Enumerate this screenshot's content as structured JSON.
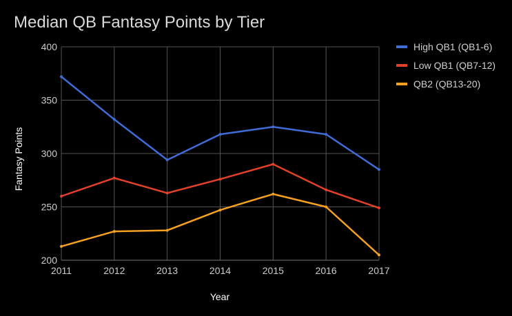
{
  "chart_data": {
    "type": "line",
    "title": "Median QB Fantasy Points by Tier",
    "xlabel": "Year",
    "ylabel": "Fantasy Points",
    "categories": [
      "2011",
      "2012",
      "2013",
      "2014",
      "2015",
      "2016",
      "2017"
    ],
    "ylim": [
      200,
      400
    ],
    "yticks": [
      "200",
      "250",
      "300",
      "350",
      "400"
    ],
    "grid": true,
    "legend_position": "right",
    "series": [
      {
        "name": "High QB1 (QB1-6)",
        "color": "#3f6cd6",
        "values": [
          372,
          332,
          294,
          318,
          325,
          318,
          285
        ]
      },
      {
        "name": "Low QB1 (QB7-12)",
        "color": "#e2412a",
        "values": [
          260,
          277,
          263,
          276,
          290,
          266,
          249
        ]
      },
      {
        "name": "QB2 (QB13-20)",
        "color": "#f6a021",
        "values": [
          213,
          227,
          228,
          247,
          262,
          250,
          205
        ]
      }
    ],
    "colors": {
      "background": "#000000",
      "grid": "#555555",
      "axis_line": "#7a7a7a",
      "title": "#d9d9d9",
      "ticks": "#cccccc"
    }
  }
}
